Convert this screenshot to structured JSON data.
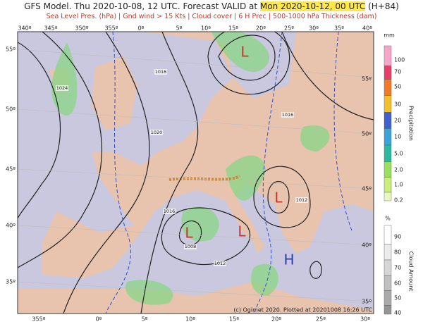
{
  "header": {
    "title_prefix": "GFS Model. Thu 2020-10-08, 12 UTC. Forecast VALID at",
    "title_valid": "Mon 2020-10-12, 00 UTC",
    "title_suffix": "(H+84)",
    "subtitle": "Sea Level Pres. (hPa) | Gnd wind > 15 Kts | Cloud cover | 6 H Prec | 500-1000 hPa Thickness (dam)"
  },
  "map": {
    "top_lon_labels": [
      "340º",
      "345º",
      "350º",
      "355º",
      "0º",
      "5º",
      "10º",
      "15º",
      "20º",
      "25º",
      "30º",
      "35º",
      "40º"
    ],
    "bottom_lon_labels": [
      "355º",
      "0º",
      "5º",
      "10º",
      "15º",
      "20º",
      "25º",
      "30º"
    ],
    "left_lat_labels": [
      "55º",
      "50º",
      "45º",
      "40º",
      "35º"
    ],
    "right_lat_labels": [
      "55º",
      "50º",
      "45º",
      "40º",
      "35º"
    ],
    "pressure_centers": [
      "L",
      "L",
      "L",
      "L",
      "H"
    ],
    "isobar_labels": [
      "1024",
      "1016",
      "1020",
      "1016",
      "1012",
      "1016",
      "1012",
      "1008"
    ],
    "credit": "(c) Ogimet 2020. Plotted at 20201008 16:26 UTC"
  },
  "precip_legend": {
    "unit": "mm",
    "title": "Precipitation",
    "labels": [
      "100",
      "70",
      "50",
      "30",
      "20",
      "10",
      "5.0",
      "2.0",
      "1.0",
      "0.2"
    ]
  },
  "cloud_legend": {
    "unit": "%",
    "title": "Cloud Amount",
    "labels": [
      "90",
      "80",
      "70",
      "60",
      "50",
      "40"
    ]
  }
}
